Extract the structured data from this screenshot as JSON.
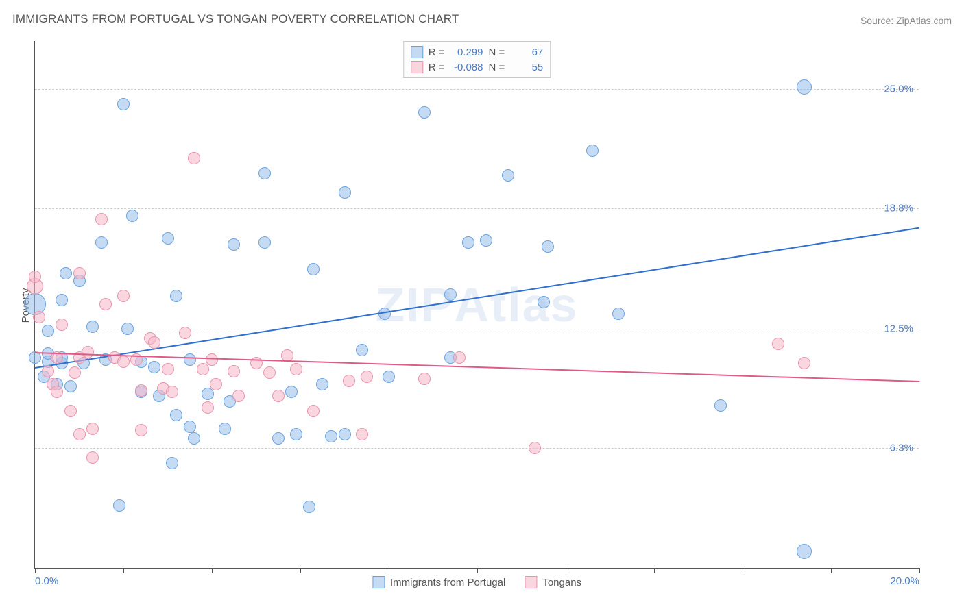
{
  "title": "IMMIGRANTS FROM PORTUGAL VS TONGAN POVERTY CORRELATION CHART",
  "source_label": "Source: ",
  "source_name": "ZipAtlas.com",
  "watermark_a": "ZIP",
  "watermark_b": "Atlas",
  "ylabel": "Poverty",
  "chart": {
    "type": "scatter",
    "background_color": "#ffffff",
    "grid_color": "#cccccc",
    "axis_color": "#555555",
    "text_color": "#555555",
    "value_color": "#4a7bc8",
    "xlim": [
      0.0,
      20.0
    ],
    "ylim": [
      0.0,
      27.5
    ],
    "x_ticks": [
      0.0,
      2.0,
      4.0,
      6.0,
      8.0,
      10.0,
      12.0,
      14.0,
      16.0,
      18.0,
      20.0
    ],
    "x_tick_labels": {
      "0": "0.0%",
      "20": "20.0%"
    },
    "y_gridlines": [
      6.3,
      12.5,
      18.8,
      25.0
    ],
    "y_tick_labels": [
      "6.3%",
      "12.5%",
      "18.8%",
      "25.0%"
    ],
    "point_radius_default": 9,
    "point_stroke_width": 1.2,
    "trend_line_width": 2,
    "series": [
      {
        "name": "Immigrants from Portugal",
        "fill_color": "rgba(150,190,235,0.55)",
        "stroke_color": "#6aa2de",
        "line_color": "#2f6fd0",
        "R": "0.299",
        "N": "67",
        "trend": {
          "x1": 0.0,
          "y1": 10.5,
          "x2": 20.0,
          "y2": 17.8
        },
        "points": [
          {
            "x": 0.0,
            "y": 11.0
          },
          {
            "x": 0.0,
            "y": 13.8,
            "r": 16
          },
          {
            "x": 0.2,
            "y": 10.0
          },
          {
            "x": 0.3,
            "y": 10.8
          },
          {
            "x": 0.3,
            "y": 11.2
          },
          {
            "x": 0.3,
            "y": 12.4
          },
          {
            "x": 0.5,
            "y": 9.6
          },
          {
            "x": 0.6,
            "y": 14.0
          },
          {
            "x": 0.7,
            "y": 15.4
          },
          {
            "x": 0.6,
            "y": 10.7
          },
          {
            "x": 0.6,
            "y": 11.0
          },
          {
            "x": 0.8,
            "y": 9.5
          },
          {
            "x": 1.0,
            "y": 15.0
          },
          {
            "x": 1.3,
            "y": 12.6
          },
          {
            "x": 1.1,
            "y": 10.7
          },
          {
            "x": 1.5,
            "y": 17.0
          },
          {
            "x": 2.0,
            "y": 24.2
          },
          {
            "x": 1.6,
            "y": 10.9
          },
          {
            "x": 1.9,
            "y": 3.3
          },
          {
            "x": 2.1,
            "y": 12.5
          },
          {
            "x": 2.2,
            "y": 18.4
          },
          {
            "x": 2.4,
            "y": 10.8
          },
          {
            "x": 2.7,
            "y": 10.5
          },
          {
            "x": 2.4,
            "y": 9.2
          },
          {
            "x": 2.8,
            "y": 9.0
          },
          {
            "x": 3.0,
            "y": 17.2
          },
          {
            "x": 3.2,
            "y": 8.0
          },
          {
            "x": 3.1,
            "y": 5.5
          },
          {
            "x": 3.2,
            "y": 14.2
          },
          {
            "x": 3.5,
            "y": 7.4
          },
          {
            "x": 3.5,
            "y": 10.9
          },
          {
            "x": 3.6,
            "y": 6.8
          },
          {
            "x": 3.9,
            "y": 9.1
          },
          {
            "x": 4.3,
            "y": 7.3
          },
          {
            "x": 4.4,
            "y": 8.7
          },
          {
            "x": 4.5,
            "y": 16.9
          },
          {
            "x": 5.2,
            "y": 20.6
          },
          {
            "x": 5.2,
            "y": 17.0
          },
          {
            "x": 5.5,
            "y": 6.8
          },
          {
            "x": 5.8,
            "y": 9.2
          },
          {
            "x": 5.9,
            "y": 7.0
          },
          {
            "x": 6.2,
            "y": 3.2
          },
          {
            "x": 6.3,
            "y": 15.6
          },
          {
            "x": 6.5,
            "y": 9.6
          },
          {
            "x": 6.7,
            "y": 6.9
          },
          {
            "x": 7.0,
            "y": 7.0
          },
          {
            "x": 7.0,
            "y": 19.6
          },
          {
            "x": 7.4,
            "y": 11.4
          },
          {
            "x": 8.0,
            "y": 10.0
          },
          {
            "x": 7.9,
            "y": 13.3
          },
          {
            "x": 8.8,
            "y": 23.8
          },
          {
            "x": 9.4,
            "y": 14.3
          },
          {
            "x": 9.4,
            "y": 11.0
          },
          {
            "x": 9.8,
            "y": 17.0
          },
          {
            "x": 10.2,
            "y": 17.1
          },
          {
            "x": 10.7,
            "y": 20.5
          },
          {
            "x": 11.5,
            "y": 13.9
          },
          {
            "x": 11.6,
            "y": 16.8
          },
          {
            "x": 12.6,
            "y": 21.8
          },
          {
            "x": 13.2,
            "y": 13.3
          },
          {
            "x": 15.5,
            "y": 8.5
          },
          {
            "x": 17.4,
            "y": 25.1,
            "r": 11
          },
          {
            "x": 17.4,
            "y": 0.9,
            "r": 11
          }
        ]
      },
      {
        "name": "Tongans",
        "fill_color": "rgba(245,180,200,0.55)",
        "stroke_color": "#e794ab",
        "line_color": "#e05a87",
        "R": "-0.088",
        "N": "55",
        "trend": {
          "x1": 0.0,
          "y1": 11.3,
          "x2": 20.0,
          "y2": 9.8
        },
        "points": [
          {
            "x": 0.0,
            "y": 14.7,
            "r": 12
          },
          {
            "x": 0.0,
            "y": 15.2
          },
          {
            "x": 0.1,
            "y": 13.1
          },
          {
            "x": 0.3,
            "y": 10.3
          },
          {
            "x": 0.4,
            "y": 9.6
          },
          {
            "x": 0.5,
            "y": 11.0
          },
          {
            "x": 0.5,
            "y": 9.2
          },
          {
            "x": 0.6,
            "y": 12.7
          },
          {
            "x": 0.8,
            "y": 8.2
          },
          {
            "x": 0.9,
            "y": 10.2
          },
          {
            "x": 1.0,
            "y": 15.4
          },
          {
            "x": 1.0,
            "y": 11.0
          },
          {
            "x": 1.0,
            "y": 7.0
          },
          {
            "x": 1.2,
            "y": 11.3
          },
          {
            "x": 1.3,
            "y": 7.3
          },
          {
            "x": 1.3,
            "y": 5.8
          },
          {
            "x": 1.5,
            "y": 18.2
          },
          {
            "x": 1.6,
            "y": 13.8
          },
          {
            "x": 1.8,
            "y": 11.0
          },
          {
            "x": 2.0,
            "y": 10.8
          },
          {
            "x": 2.0,
            "y": 14.2
          },
          {
            "x": 2.3,
            "y": 10.9
          },
          {
            "x": 2.4,
            "y": 9.3
          },
          {
            "x": 2.4,
            "y": 7.2
          },
          {
            "x": 2.6,
            "y": 12.0
          },
          {
            "x": 2.7,
            "y": 11.8
          },
          {
            "x": 2.9,
            "y": 9.4
          },
          {
            "x": 3.0,
            "y": 10.4
          },
          {
            "x": 3.1,
            "y": 9.2
          },
          {
            "x": 3.4,
            "y": 12.3
          },
          {
            "x": 3.6,
            "y": 21.4
          },
          {
            "x": 3.8,
            "y": 10.4
          },
          {
            "x": 3.9,
            "y": 8.4
          },
          {
            "x": 4.0,
            "y": 10.9
          },
          {
            "x": 4.1,
            "y": 9.6
          },
          {
            "x": 4.5,
            "y": 10.3
          },
          {
            "x": 4.6,
            "y": 9.0
          },
          {
            "x": 5.0,
            "y": 10.7
          },
          {
            "x": 5.3,
            "y": 10.2
          },
          {
            "x": 5.5,
            "y": 9.0
          },
          {
            "x": 5.7,
            "y": 11.1
          },
          {
            "x": 5.9,
            "y": 10.4
          },
          {
            "x": 6.3,
            "y": 8.2
          },
          {
            "x": 7.1,
            "y": 9.8
          },
          {
            "x": 7.4,
            "y": 7.0
          },
          {
            "x": 7.5,
            "y": 10.0
          },
          {
            "x": 8.8,
            "y": 9.9
          },
          {
            "x": 9.6,
            "y": 11.0
          },
          {
            "x": 11.3,
            "y": 6.3
          },
          {
            "x": 16.8,
            "y": 11.7
          },
          {
            "x": 17.4,
            "y": 10.7
          }
        ]
      }
    ]
  },
  "legend_top_prefix_r": "R =",
  "legend_top_prefix_n": "N =",
  "legend_bottom": [
    {
      "label": "Immigrants from Portugal",
      "series": 0
    },
    {
      "label": "Tongans",
      "series": 1
    }
  ]
}
